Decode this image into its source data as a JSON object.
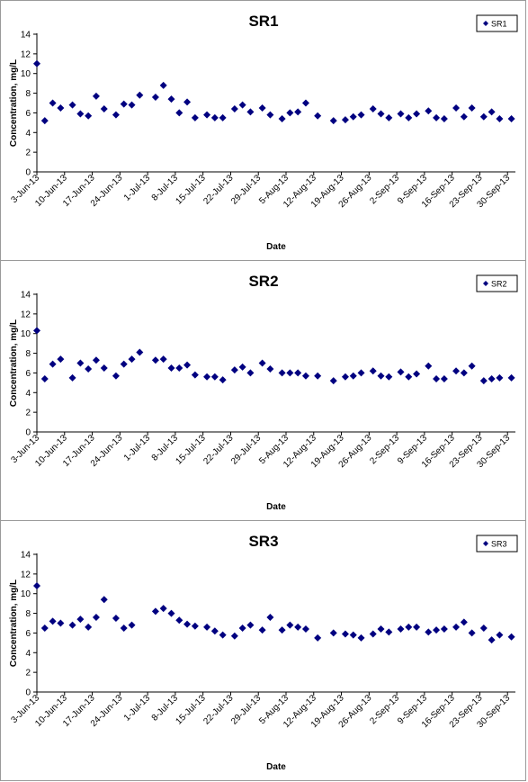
{
  "chart_data": [
    {
      "type": "scatter",
      "title": "SR1",
      "xlabel": "Date",
      "ylabel": "Concentration, mg/L",
      "ylim": [
        0,
        14
      ],
      "yticks": [
        0,
        2,
        4,
        6,
        8,
        10,
        12,
        14
      ],
      "xlim": [
        "2013-06-03",
        "2013-10-02"
      ],
      "xticks": [
        "2013-06-03",
        "2013-06-10",
        "2013-06-17",
        "2013-06-24",
        "2013-07-01",
        "2013-07-08",
        "2013-07-15",
        "2013-07-22",
        "2013-07-29",
        "2013-08-05",
        "2013-08-12",
        "2013-08-19",
        "2013-08-26",
        "2013-09-02",
        "2013-09-09",
        "2013-09-16",
        "2013-09-23",
        "2013-09-30"
      ],
      "xtick_labels": [
        "3-Jun-13",
        "10-Jun-13",
        "17-Jun-13",
        "24-Jun-13",
        "1-Jul-13",
        "8-Jul-13",
        "15-Jul-13",
        "22-Jul-13",
        "29-Jul-13",
        "5-Aug-13",
        "12-Aug-13",
        "19-Aug-13",
        "26-Aug-13",
        "2-Sep-13",
        "9-Sep-13",
        "16-Sep-13",
        "23-Sep-13",
        "30-Sep-13"
      ],
      "grid": false,
      "legend_position": "top-right",
      "marker_color": "#000080",
      "series": [
        {
          "name": "SR1",
          "x": [
            "2013-06-03",
            "2013-06-05",
            "2013-06-07",
            "2013-06-09",
            "2013-06-12",
            "2013-06-14",
            "2013-06-16",
            "2013-06-18",
            "2013-06-20",
            "2013-06-23",
            "2013-06-25",
            "2013-06-27",
            "2013-06-29",
            "2013-07-03",
            "2013-07-05",
            "2013-07-07",
            "2013-07-09",
            "2013-07-11",
            "2013-07-13",
            "2013-07-16",
            "2013-07-18",
            "2013-07-20",
            "2013-07-23",
            "2013-07-25",
            "2013-07-27",
            "2013-07-30",
            "2013-08-01",
            "2013-08-04",
            "2013-08-06",
            "2013-08-08",
            "2013-08-10",
            "2013-08-13",
            "2013-08-17",
            "2013-08-20",
            "2013-08-22",
            "2013-08-24",
            "2013-08-27",
            "2013-08-29",
            "2013-08-31",
            "2013-09-03",
            "2013-09-05",
            "2013-09-07",
            "2013-09-10",
            "2013-09-12",
            "2013-09-14",
            "2013-09-17",
            "2013-09-19",
            "2013-09-21",
            "2013-09-24",
            "2013-09-26",
            "2013-09-28",
            "2013-10-01"
          ],
          "y": [
            11.0,
            5.2,
            7.0,
            6.5,
            6.8,
            5.9,
            5.7,
            7.7,
            6.4,
            5.8,
            6.9,
            6.8,
            7.8,
            7.6,
            8.8,
            7.4,
            6.0,
            7.1,
            5.5,
            5.8,
            5.5,
            5.5,
            6.4,
            6.8,
            6.1,
            6.5,
            5.8,
            5.4,
            6.0,
            6.1,
            7.0,
            5.7,
            5.2,
            5.3,
            5.6,
            5.8,
            6.4,
            5.9,
            5.5,
            5.9,
            5.5,
            5.9,
            6.2,
            5.5,
            5.4,
            6.5,
            5.6,
            6.5,
            5.6,
            6.1,
            5.4,
            5.4
          ]
        }
      ]
    },
    {
      "type": "scatter",
      "title": "SR2",
      "xlabel": "Date",
      "ylabel": "Concentration, mg/L",
      "ylim": [
        0,
        14
      ],
      "yticks": [
        0,
        2,
        4,
        6,
        8,
        10,
        12,
        14
      ],
      "xlim": [
        "2013-06-03",
        "2013-10-02"
      ],
      "xticks": [
        "2013-06-03",
        "2013-06-10",
        "2013-06-17",
        "2013-06-24",
        "2013-07-01",
        "2013-07-08",
        "2013-07-15",
        "2013-07-22",
        "2013-07-29",
        "2013-08-05",
        "2013-08-12",
        "2013-08-19",
        "2013-08-26",
        "2013-09-02",
        "2013-09-09",
        "2013-09-16",
        "2013-09-23",
        "2013-09-30"
      ],
      "xtick_labels": [
        "3-Jun-13",
        "10-Jun-13",
        "17-Jun-13",
        "24-Jun-13",
        "1-Jul-13",
        "8-Jul-13",
        "15-Jul-13",
        "22-Jul-13",
        "29-Jul-13",
        "5-Aug-13",
        "12-Aug-13",
        "19-Aug-13",
        "26-Aug-13",
        "2-Sep-13",
        "9-Sep-13",
        "16-Sep-13",
        "23-Sep-13",
        "30-Sep-13"
      ],
      "grid": false,
      "legend_position": "top-right",
      "marker_color": "#000080",
      "series": [
        {
          "name": "SR2",
          "x": [
            "2013-06-03",
            "2013-06-05",
            "2013-06-07",
            "2013-06-09",
            "2013-06-12",
            "2013-06-14",
            "2013-06-16",
            "2013-06-18",
            "2013-06-20",
            "2013-06-23",
            "2013-06-25",
            "2013-06-27",
            "2013-06-29",
            "2013-07-03",
            "2013-07-05",
            "2013-07-07",
            "2013-07-09",
            "2013-07-11",
            "2013-07-13",
            "2013-07-16",
            "2013-07-18",
            "2013-07-20",
            "2013-07-23",
            "2013-07-25",
            "2013-07-27",
            "2013-07-30",
            "2013-08-01",
            "2013-08-04",
            "2013-08-06",
            "2013-08-08",
            "2013-08-10",
            "2013-08-13",
            "2013-08-17",
            "2013-08-20",
            "2013-08-22",
            "2013-08-24",
            "2013-08-27",
            "2013-08-29",
            "2013-08-31",
            "2013-09-03",
            "2013-09-05",
            "2013-09-07",
            "2013-09-10",
            "2013-09-12",
            "2013-09-14",
            "2013-09-17",
            "2013-09-19",
            "2013-09-21",
            "2013-09-24",
            "2013-09-26",
            "2013-09-28",
            "2013-10-01"
          ],
          "y": [
            10.3,
            5.4,
            6.9,
            7.4,
            5.5,
            7.0,
            6.4,
            7.3,
            6.5,
            5.7,
            6.9,
            7.4,
            8.1,
            7.3,
            7.4,
            6.5,
            6.5,
            6.8,
            5.8,
            5.6,
            5.6,
            5.3,
            6.3,
            6.6,
            6.0,
            7.0,
            6.4,
            6.0,
            6.0,
            6.0,
            5.7,
            5.7,
            5.2,
            5.6,
            5.7,
            6.0,
            6.2,
            5.7,
            5.6,
            6.1,
            5.6,
            5.9,
            6.7,
            5.4,
            5.4,
            6.2,
            6.0,
            6.7,
            5.2,
            5.4,
            5.5,
            5.5
          ]
        }
      ]
    },
    {
      "type": "scatter",
      "title": "SR3",
      "xlabel": "Date",
      "ylabel": "Concentration, mg/L",
      "ylim": [
        0,
        14
      ],
      "yticks": [
        0,
        2,
        4,
        6,
        8,
        10,
        12,
        14
      ],
      "xlim": [
        "2013-06-03",
        "2013-10-02"
      ],
      "xticks": [
        "2013-06-03",
        "2013-06-10",
        "2013-06-17",
        "2013-06-24",
        "2013-07-01",
        "2013-07-08",
        "2013-07-15",
        "2013-07-22",
        "2013-07-29",
        "2013-08-05",
        "2013-08-12",
        "2013-08-19",
        "2013-08-26",
        "2013-09-02",
        "2013-09-09",
        "2013-09-16",
        "2013-09-23",
        "2013-09-30"
      ],
      "xtick_labels": [
        "3-Jun-13",
        "10-Jun-13",
        "17-Jun-13",
        "24-Jun-13",
        "1-Jul-13",
        "8-Jul-13",
        "15-Jul-13",
        "22-Jul-13",
        "29-Jul-13",
        "5-Aug-13",
        "12-Aug-13",
        "19-Aug-13",
        "26-Aug-13",
        "2-Sep-13",
        "9-Sep-13",
        "16-Sep-13",
        "23-Sep-13",
        "30-Sep-13"
      ],
      "grid": false,
      "legend_position": "top-right",
      "marker_color": "#000080",
      "series": [
        {
          "name": "SR3",
          "x": [
            "2013-06-03",
            "2013-06-05",
            "2013-06-07",
            "2013-06-09",
            "2013-06-12",
            "2013-06-14",
            "2013-06-16",
            "2013-06-18",
            "2013-06-20",
            "2013-06-23",
            "2013-06-25",
            "2013-06-27",
            "2013-07-03",
            "2013-07-05",
            "2013-07-07",
            "2013-07-09",
            "2013-07-11",
            "2013-07-13",
            "2013-07-16",
            "2013-07-18",
            "2013-07-20",
            "2013-07-23",
            "2013-07-25",
            "2013-07-27",
            "2013-07-30",
            "2013-08-01",
            "2013-08-04",
            "2013-08-06",
            "2013-08-08",
            "2013-08-10",
            "2013-08-13",
            "2013-08-17",
            "2013-08-20",
            "2013-08-22",
            "2013-08-24",
            "2013-08-27",
            "2013-08-29",
            "2013-08-31",
            "2013-09-03",
            "2013-09-05",
            "2013-09-07",
            "2013-09-10",
            "2013-09-12",
            "2013-09-14",
            "2013-09-17",
            "2013-09-19",
            "2013-09-21",
            "2013-09-24",
            "2013-09-26",
            "2013-09-28",
            "2013-10-01"
          ],
          "y": [
            10.8,
            6.5,
            7.2,
            7.0,
            6.8,
            7.4,
            6.6,
            7.6,
            9.4,
            7.5,
            6.5,
            6.8,
            8.2,
            8.5,
            8.0,
            7.3,
            6.9,
            6.7,
            6.6,
            6.2,
            5.8,
            5.7,
            6.5,
            6.8,
            6.3,
            7.6,
            6.3,
            6.8,
            6.6,
            6.4,
            5.5,
            6.0,
            5.9,
            5.8,
            5.5,
            5.9,
            6.4,
            6.1,
            6.4,
            6.6,
            6.6,
            6.1,
            6.3,
            6.4,
            6.6,
            7.1,
            6.0,
            6.5,
            5.3,
            5.8,
            5.6
          ]
        }
      ]
    }
  ]
}
